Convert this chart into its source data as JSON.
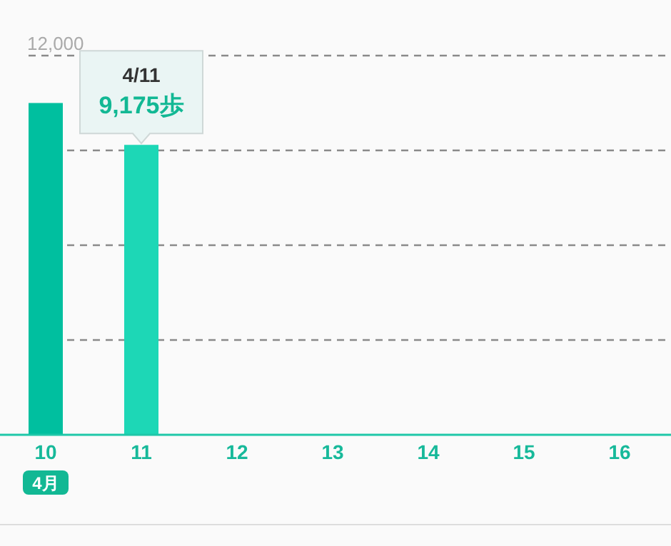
{
  "chart_data": {
    "type": "bar",
    "categories": [
      "10",
      "11",
      "12",
      "13",
      "14",
      "15",
      "16"
    ],
    "values": [
      10500,
      9175,
      null,
      null,
      null,
      null,
      null
    ],
    "colors": [
      "#00bf9f",
      "#1dd7b6",
      null,
      null,
      null,
      null,
      null
    ],
    "ylim": [
      0,
      12000
    ],
    "yticks": [
      {
        "value": 3000,
        "label": null
      },
      {
        "value": 6000,
        "label": null
      },
      {
        "value": 9000,
        "label": null
      },
      {
        "value": 12000,
        "label": "12,000"
      }
    ],
    "grid": "y",
    "annotations": [
      {
        "text": "4/11",
        "x": "11",
        "y": 9175
      },
      {
        "text": "9,175歩",
        "x": "11",
        "y": 9175
      },
      "4月"
    ]
  }
}
